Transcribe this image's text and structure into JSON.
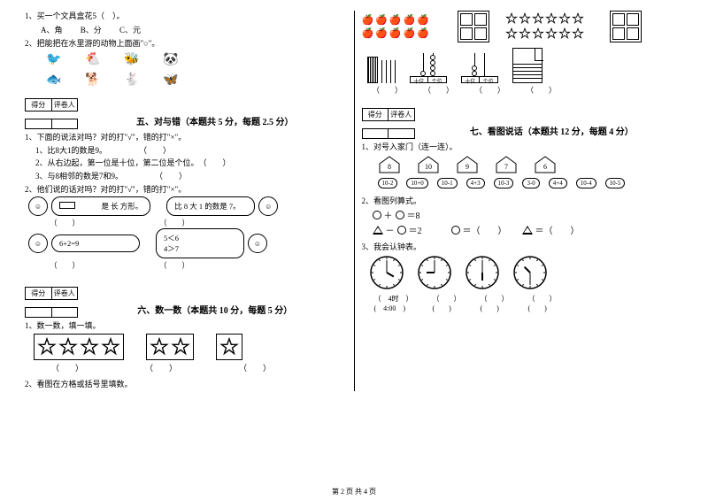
{
  "left": {
    "q1": {
      "text": "1、买一个文具盒花5（　）。",
      "opts": [
        "A、角",
        "B、分",
        "C、元"
      ]
    },
    "q2": {
      "text": "2、把能把在水里游的动物上面画\"○\"。"
    },
    "score": {
      "a": "得分",
      "b": "评卷人"
    },
    "s5": {
      "title": "五、对与错（本题共 5 分，每题 2.5 分）",
      "intro": "1、下面的说法对吗？对的打\"√\"，错的打\"×\"。",
      "lines": [
        "1、比8大1的数是9。",
        "2、从右边起，第一位是十位，第二位是个位。",
        "3、与8相邻的数是7和9。"
      ],
      "intro2": "2、他们说的话对吗？对的打\"√\"，错的打\"×\"。",
      "b1": "　　　是 长 方形。",
      "b2": "比 8 大 1 的数是 7。",
      "b3": "6+2=9",
      "b4": "5＜6\n4＞7"
    },
    "s6": {
      "title": "六、数一数（本题共 10 分，每题 5 分）",
      "q1": "1、数一数，填一填。",
      "stars": [
        4,
        2,
        1
      ],
      "q2": "2、看图在方格或括号里填数。"
    }
  },
  "right": {
    "score": {
      "a": "得分",
      "b": "评卷人"
    },
    "s7": {
      "title": "七、看图说话（本题共 12 分，每题 4 分）",
      "q1": "1、对号入家门（连一连）。",
      "houses": [
        "8",
        "10",
        "9",
        "7",
        "6"
      ],
      "clouds": [
        "10-2",
        "10+0",
        "10-1",
        "4+3",
        "10-3",
        "3-0",
        "4+4",
        "10-4",
        "10-5"
      ],
      "q2": "2、看图列算式。",
      "eq1": "＝8",
      "eq2": "＝2",
      "fillC": "＝（　　）",
      "fillT": "＝（　　）",
      "q3": "3、我会认钟表。",
      "clocklabels": [
        "（　4时　）",
        "(　4:00　)"
      ]
    }
  },
  "footer": "第 2 页 共 4 页",
  "vis": {
    "text_color": "#000000",
    "bg": "#ffffff",
    "font": "SimSun",
    "star_stroke": "#000",
    "clock_stroke": "#000"
  }
}
